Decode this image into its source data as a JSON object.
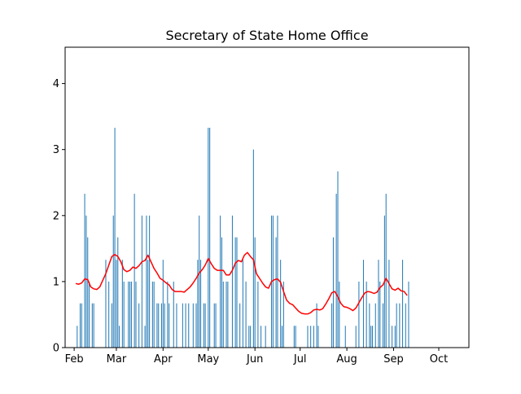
{
  "chart_data": {
    "type": "bar",
    "title": "Secretary of State Home Office",
    "xlabel": "",
    "ylabel": "",
    "ylim": [
      0,
      4.55
    ],
    "xlim": [
      "2014-01-26",
      "2014-10-21"
    ],
    "y_ticks": [
      0,
      1,
      2,
      3,
      4
    ],
    "x_ticks": [
      {
        "date": "2014-02-01",
        "label": "Feb"
      },
      {
        "date": "2014-03-01",
        "label": "Mar"
      },
      {
        "date": "2014-04-01",
        "label": "Apr"
      },
      {
        "date": "2014-05-01",
        "label": "May"
      },
      {
        "date": "2014-06-01",
        "label": "Jun"
      },
      {
        "date": "2014-07-01",
        "label": "Jul"
      },
      {
        "date": "2014-08-01",
        "label": "Aug"
      },
      {
        "date": "2014-09-01",
        "label": "Sep"
      },
      {
        "date": "2014-10-01",
        "label": "Oct"
      }
    ],
    "grid": false,
    "bar_color": "#1f77b4",
    "line_color": "#ff0000",
    "series": [
      {
        "kind": "bar",
        "points": [
          [
            "2014-02-03",
            0.33
          ],
          [
            "2014-02-05",
            0.67
          ],
          [
            "2014-02-06",
            0.67
          ],
          [
            "2014-02-08",
            2.33
          ],
          [
            "2014-02-09",
            2.0
          ],
          [
            "2014-02-10",
            1.67
          ],
          [
            "2014-02-11",
            1.0
          ],
          [
            "2014-02-13",
            0.67
          ],
          [
            "2014-02-14",
            0.67
          ],
          [
            "2014-02-22",
            1.33
          ],
          [
            "2014-02-24",
            1.0
          ],
          [
            "2014-02-26",
            0.67
          ],
          [
            "2014-02-27",
            2.0
          ],
          [
            "2014-02-28",
            3.33
          ],
          [
            "2014-03-01",
            1.33
          ],
          [
            "2014-03-02",
            1.67
          ],
          [
            "2014-03-03",
            0.33
          ],
          [
            "2014-03-05",
            1.33
          ],
          [
            "2014-03-06",
            1.0
          ],
          [
            "2014-03-09",
            1.0
          ],
          [
            "2014-03-10",
            1.0
          ],
          [
            "2014-03-11",
            1.0
          ],
          [
            "2014-03-13",
            2.33
          ],
          [
            "2014-03-14",
            1.0
          ],
          [
            "2014-03-16",
            0.67
          ],
          [
            "2014-03-18",
            2.0
          ],
          [
            "2014-03-20",
            0.33
          ],
          [
            "2014-03-21",
            2.0
          ],
          [
            "2014-03-22",
            1.33
          ],
          [
            "2014-03-23",
            2.0
          ],
          [
            "2014-03-25",
            1.0
          ],
          [
            "2014-03-26",
            1.0
          ],
          [
            "2014-03-28",
            0.67
          ],
          [
            "2014-03-29",
            0.67
          ],
          [
            "2014-03-31",
            0.67
          ],
          [
            "2014-04-01",
            1.33
          ],
          [
            "2014-04-02",
            0.67
          ],
          [
            "2014-04-04",
            1.0
          ],
          [
            "2014-04-05",
            0.67
          ],
          [
            "2014-04-08",
            1.0
          ],
          [
            "2014-04-10",
            0.67
          ],
          [
            "2014-04-14",
            0.67
          ],
          [
            "2014-04-16",
            0.67
          ],
          [
            "2014-04-18",
            0.67
          ],
          [
            "2014-04-21",
            0.67
          ],
          [
            "2014-04-23",
            0.67
          ],
          [
            "2014-04-24",
            1.33
          ],
          [
            "2014-04-25",
            2.0
          ],
          [
            "2014-04-26",
            1.33
          ],
          [
            "2014-04-28",
            0.67
          ],
          [
            "2014-04-29",
            0.67
          ],
          [
            "2014-05-01",
            3.33
          ],
          [
            "2014-05-02",
            3.33
          ],
          [
            "2014-05-05",
            0.67
          ],
          [
            "2014-05-06",
            0.67
          ],
          [
            "2014-05-09",
            2.0
          ],
          [
            "2014-05-10",
            1.67
          ],
          [
            "2014-05-11",
            1.0
          ],
          [
            "2014-05-13",
            1.0
          ],
          [
            "2014-05-14",
            1.0
          ],
          [
            "2014-05-17",
            2.0
          ],
          [
            "2014-05-19",
            1.67
          ],
          [
            "2014-05-20",
            1.67
          ],
          [
            "2014-05-22",
            0.67
          ],
          [
            "2014-05-24",
            1.33
          ],
          [
            "2014-05-26",
            1.0
          ],
          [
            "2014-05-28",
            0.33
          ],
          [
            "2014-05-29",
            0.33
          ],
          [
            "2014-05-31",
            3.0
          ],
          [
            "2014-06-01",
            1.67
          ],
          [
            "2014-06-03",
            1.0
          ],
          [
            "2014-06-05",
            0.33
          ],
          [
            "2014-06-08",
            0.33
          ],
          [
            "2014-06-12",
            2.0
          ],
          [
            "2014-06-13",
            2.0
          ],
          [
            "2014-06-15",
            1.67
          ],
          [
            "2014-06-16",
            2.0
          ],
          [
            "2014-06-18",
            1.33
          ],
          [
            "2014-06-19",
            0.33
          ],
          [
            "2014-06-20",
            1.0
          ],
          [
            "2014-06-27",
            0.33
          ],
          [
            "2014-06-28",
            0.33
          ],
          [
            "2014-07-06",
            0.33
          ],
          [
            "2014-07-08",
            0.33
          ],
          [
            "2014-07-10",
            0.33
          ],
          [
            "2014-07-12",
            0.67
          ],
          [
            "2014-07-13",
            0.33
          ],
          [
            "2014-07-22",
            0.67
          ],
          [
            "2014-07-23",
            1.67
          ],
          [
            "2014-07-25",
            2.33
          ],
          [
            "2014-07-26",
            2.67
          ],
          [
            "2014-07-27",
            1.0
          ],
          [
            "2014-07-31",
            0.33
          ],
          [
            "2014-08-07",
            0.33
          ],
          [
            "2014-08-09",
            1.0
          ],
          [
            "2014-08-12",
            1.33
          ],
          [
            "2014-08-14",
            1.0
          ],
          [
            "2014-08-16",
            0.67
          ],
          [
            "2014-08-17",
            0.33
          ],
          [
            "2014-08-18",
            0.33
          ],
          [
            "2014-08-20",
            0.67
          ],
          [
            "2014-08-22",
            1.33
          ],
          [
            "2014-08-23",
            1.0
          ],
          [
            "2014-08-25",
            0.67
          ],
          [
            "2014-08-26",
            2.0
          ],
          [
            "2014-08-27",
            2.33
          ],
          [
            "2014-08-29",
            1.33
          ],
          [
            "2014-08-31",
            0.33
          ],
          [
            "2014-09-02",
            0.33
          ],
          [
            "2014-09-03",
            0.67
          ],
          [
            "2014-09-05",
            0.67
          ],
          [
            "2014-09-07",
            1.33
          ],
          [
            "2014-09-09",
            0.67
          ],
          [
            "2014-09-11",
            1.0
          ]
        ]
      },
      {
        "kind": "line",
        "points": [
          [
            "2014-02-02",
            0.97
          ],
          [
            "2014-02-04",
            0.96
          ],
          [
            "2014-02-06",
            0.98
          ],
          [
            "2014-02-08",
            1.04
          ],
          [
            "2014-02-10",
            1.03
          ],
          [
            "2014-02-12",
            0.92
          ],
          [
            "2014-02-14",
            0.89
          ],
          [
            "2014-02-16",
            0.88
          ],
          [
            "2014-02-18",
            0.92
          ],
          [
            "2014-02-20",
            1.02
          ],
          [
            "2014-02-22",
            1.12
          ],
          [
            "2014-02-24",
            1.25
          ],
          [
            "2014-02-26",
            1.38
          ],
          [
            "2014-02-28",
            1.41
          ],
          [
            "2014-03-02",
            1.38
          ],
          [
            "2014-03-04",
            1.3
          ],
          [
            "2014-03-06",
            1.18
          ],
          [
            "2014-03-08",
            1.15
          ],
          [
            "2014-03-10",
            1.17
          ],
          [
            "2014-03-12",
            1.22
          ],
          [
            "2014-03-14",
            1.2
          ],
          [
            "2014-03-16",
            1.24
          ],
          [
            "2014-03-18",
            1.3
          ],
          [
            "2014-03-20",
            1.32
          ],
          [
            "2014-03-22",
            1.4
          ],
          [
            "2014-03-24",
            1.3
          ],
          [
            "2014-03-26",
            1.2
          ],
          [
            "2014-03-28",
            1.13
          ],
          [
            "2014-03-30",
            1.05
          ],
          [
            "2014-04-01",
            1.02
          ],
          [
            "2014-04-03",
            0.98
          ],
          [
            "2014-04-05",
            0.95
          ],
          [
            "2014-04-07",
            0.88
          ],
          [
            "2014-04-09",
            0.85
          ],
          [
            "2014-04-11",
            0.85
          ],
          [
            "2014-04-13",
            0.85
          ],
          [
            "2014-04-15",
            0.84
          ],
          [
            "2014-04-17",
            0.88
          ],
          [
            "2014-04-19",
            0.92
          ],
          [
            "2014-04-21",
            0.98
          ],
          [
            "2014-04-23",
            1.05
          ],
          [
            "2014-04-25",
            1.13
          ],
          [
            "2014-04-27",
            1.18
          ],
          [
            "2014-04-29",
            1.25
          ],
          [
            "2014-05-01",
            1.35
          ],
          [
            "2014-05-03",
            1.27
          ],
          [
            "2014-05-05",
            1.2
          ],
          [
            "2014-05-07",
            1.17
          ],
          [
            "2014-05-09",
            1.17
          ],
          [
            "2014-05-11",
            1.17
          ],
          [
            "2014-05-13",
            1.1
          ],
          [
            "2014-05-15",
            1.1
          ],
          [
            "2014-05-17",
            1.17
          ],
          [
            "2014-05-19",
            1.28
          ],
          [
            "2014-05-21",
            1.32
          ],
          [
            "2014-05-23",
            1.3
          ],
          [
            "2014-05-25",
            1.4
          ],
          [
            "2014-05-27",
            1.44
          ],
          [
            "2014-05-29",
            1.38
          ],
          [
            "2014-05-31",
            1.33
          ],
          [
            "2014-06-02",
            1.12
          ],
          [
            "2014-06-04",
            1.05
          ],
          [
            "2014-06-06",
            0.98
          ],
          [
            "2014-06-08",
            0.92
          ],
          [
            "2014-06-10",
            0.9
          ],
          [
            "2014-06-12",
            1.0
          ],
          [
            "2014-06-14",
            1.03
          ],
          [
            "2014-06-16",
            1.04
          ],
          [
            "2014-06-18",
            0.99
          ],
          [
            "2014-06-20",
            0.85
          ],
          [
            "2014-06-22",
            0.72
          ],
          [
            "2014-06-24",
            0.67
          ],
          [
            "2014-06-26",
            0.65
          ],
          [
            "2014-06-28",
            0.6
          ],
          [
            "2014-06-30",
            0.55
          ],
          [
            "2014-07-02",
            0.52
          ],
          [
            "2014-07-04",
            0.51
          ],
          [
            "2014-07-06",
            0.51
          ],
          [
            "2014-07-08",
            0.53
          ],
          [
            "2014-07-10",
            0.57
          ],
          [
            "2014-07-12",
            0.58
          ],
          [
            "2014-07-14",
            0.57
          ],
          [
            "2014-07-16",
            0.59
          ],
          [
            "2014-07-18",
            0.66
          ],
          [
            "2014-07-20",
            0.74
          ],
          [
            "2014-07-22",
            0.83
          ],
          [
            "2014-07-24",
            0.85
          ],
          [
            "2014-07-26",
            0.77
          ],
          [
            "2014-07-28",
            0.67
          ],
          [
            "2014-07-30",
            0.62
          ],
          [
            "2014-08-01",
            0.61
          ],
          [
            "2014-08-03",
            0.59
          ],
          [
            "2014-08-05",
            0.56
          ],
          [
            "2014-08-07",
            0.6
          ],
          [
            "2014-08-09",
            0.68
          ],
          [
            "2014-08-11",
            0.76
          ],
          [
            "2014-08-13",
            0.83
          ],
          [
            "2014-08-15",
            0.85
          ],
          [
            "2014-08-17",
            0.84
          ],
          [
            "2014-08-19",
            0.82
          ],
          [
            "2014-08-21",
            0.84
          ],
          [
            "2014-08-23",
            0.91
          ],
          [
            "2014-08-25",
            0.95
          ],
          [
            "2014-08-27",
            1.05
          ],
          [
            "2014-08-29",
            0.97
          ],
          [
            "2014-08-31",
            0.89
          ],
          [
            "2014-09-02",
            0.87
          ],
          [
            "2014-09-04",
            0.9
          ],
          [
            "2014-09-06",
            0.86
          ],
          [
            "2014-09-08",
            0.85
          ],
          [
            "2014-09-10",
            0.79
          ]
        ]
      }
    ]
  }
}
